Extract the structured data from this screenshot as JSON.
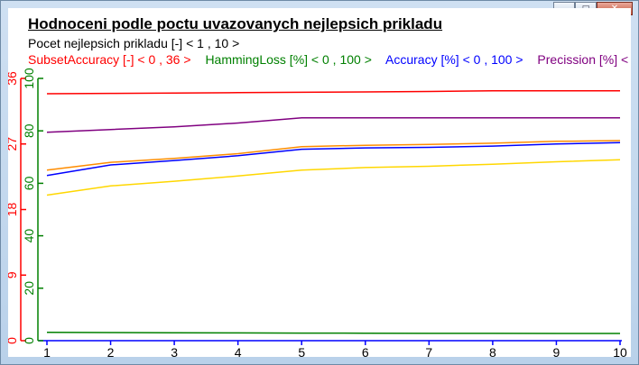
{
  "window": {
    "minimize_icon": "minimize-icon",
    "maximize_icon": "maximize-icon",
    "close_icon": "close-icon"
  },
  "chart_data": {
    "type": "line",
    "title": "Hodnoceni podle poctu uvazovanych nejlepsich prikladu",
    "xlabel": "Pocet nejlepsich prikladu [-] < 1 , 10 >",
    "x": [
      1,
      2,
      3,
      4,
      5,
      6,
      7,
      8,
      9,
      10
    ],
    "xlim": [
      1,
      10
    ],
    "legend_placement": "top",
    "grid": false,
    "legend": [
      {
        "label": "SubsetAccuracy [-] < 0 , 36 >",
        "color": "#ff0000"
      },
      {
        "label": "HammingLoss [%] < 0 , 100 >",
        "color": "#008000"
      },
      {
        "label": "Accuracy [%] < 0 , 100 >",
        "color": "#0000ff"
      },
      {
        "label": "Precission [%] < 0 , 100 >",
        "color": "#800080"
      }
    ],
    "axes": [
      {
        "name": "SubsetAccuracy",
        "range": [
          0,
          36
        ],
        "ticks": [
          "0",
          "9",
          "18",
          "27",
          "36"
        ],
        "tick_values": [
          0,
          9,
          18,
          27,
          36
        ],
        "color": "#ff0000"
      },
      {
        "name": "HammingLoss",
        "range": [
          0,
          100
        ],
        "ticks": [
          "0",
          "20",
          "40",
          "60",
          "80",
          "100"
        ],
        "tick_values": [
          0,
          20,
          40,
          60,
          80,
          100
        ],
        "color": "#008000"
      }
    ],
    "series": [
      {
        "name": "SubsetAccuracy",
        "axis": 0,
        "color": "#ff0000",
        "values": [
          33.9,
          33.95,
          34.0,
          34.05,
          34.1,
          34.15,
          34.2,
          34.3,
          34.3,
          34.3
        ]
      },
      {
        "name": "HammingLoss",
        "axis": 1,
        "color": "#008000",
        "values": [
          3.2,
          3.1,
          3.0,
          2.95,
          2.9,
          2.85,
          2.8,
          2.8,
          2.75,
          2.75
        ]
      },
      {
        "name": "Accuracy",
        "axis": 1,
        "color": "#0000ff",
        "values": [
          63.0,
          67.0,
          68.7,
          70.5,
          73.0,
          73.5,
          73.7,
          74.2,
          75.0,
          75.5
        ]
      },
      {
        "name": "Precission",
        "axis": 1,
        "color": "#800080",
        "values": [
          79.5,
          80.5,
          81.5,
          83.0,
          85.0,
          85.0,
          85.0,
          85.0,
          85.0,
          85.0
        ]
      },
      {
        "color": "#ff8c00",
        "axis": 1,
        "values": [
          65.0,
          68.0,
          69.5,
          71.3,
          74.0,
          74.5,
          74.8,
          75.3,
          76.0,
          76.3
        ]
      },
      {
        "color": "#ffd700",
        "axis": 1,
        "values": [
          55.5,
          59.0,
          60.8,
          62.8,
          65.0,
          66.0,
          66.5,
          67.3,
          68.2,
          69.0
        ]
      }
    ]
  }
}
